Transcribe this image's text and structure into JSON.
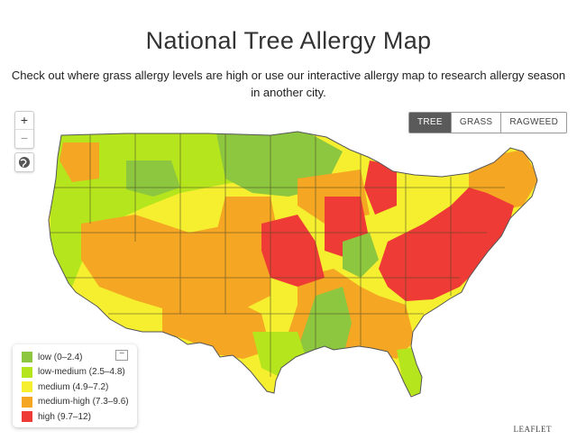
{
  "page": {
    "title": "National Tree Allergy Map",
    "subtitle": "Check out where grass allergy levels are high or use our interactive allergy map to research allergy season in another city."
  },
  "controls": {
    "zoom_in": "+",
    "zoom_out": "−",
    "locate_icon": "globe-icon"
  },
  "toggle": {
    "options": [
      "TREE",
      "GRASS",
      "RAGWEED"
    ],
    "selected": "TREE"
  },
  "legend": {
    "collapse_label": "[ − ]",
    "items": [
      {
        "label": "low (0–2.4)",
        "color": "#8dc63f"
      },
      {
        "label": "low-medium (2.5–4.8)",
        "color": "#b5e61d"
      },
      {
        "label": "medium (4.9–7.2)",
        "color": "#f5ef2f"
      },
      {
        "label": "medium-high (7.3–9.6)",
        "color": "#f5a623"
      },
      {
        "label": "high (9.7–12)",
        "color": "#ef3b36"
      }
    ]
  },
  "attribution": "LEAFLET"
}
